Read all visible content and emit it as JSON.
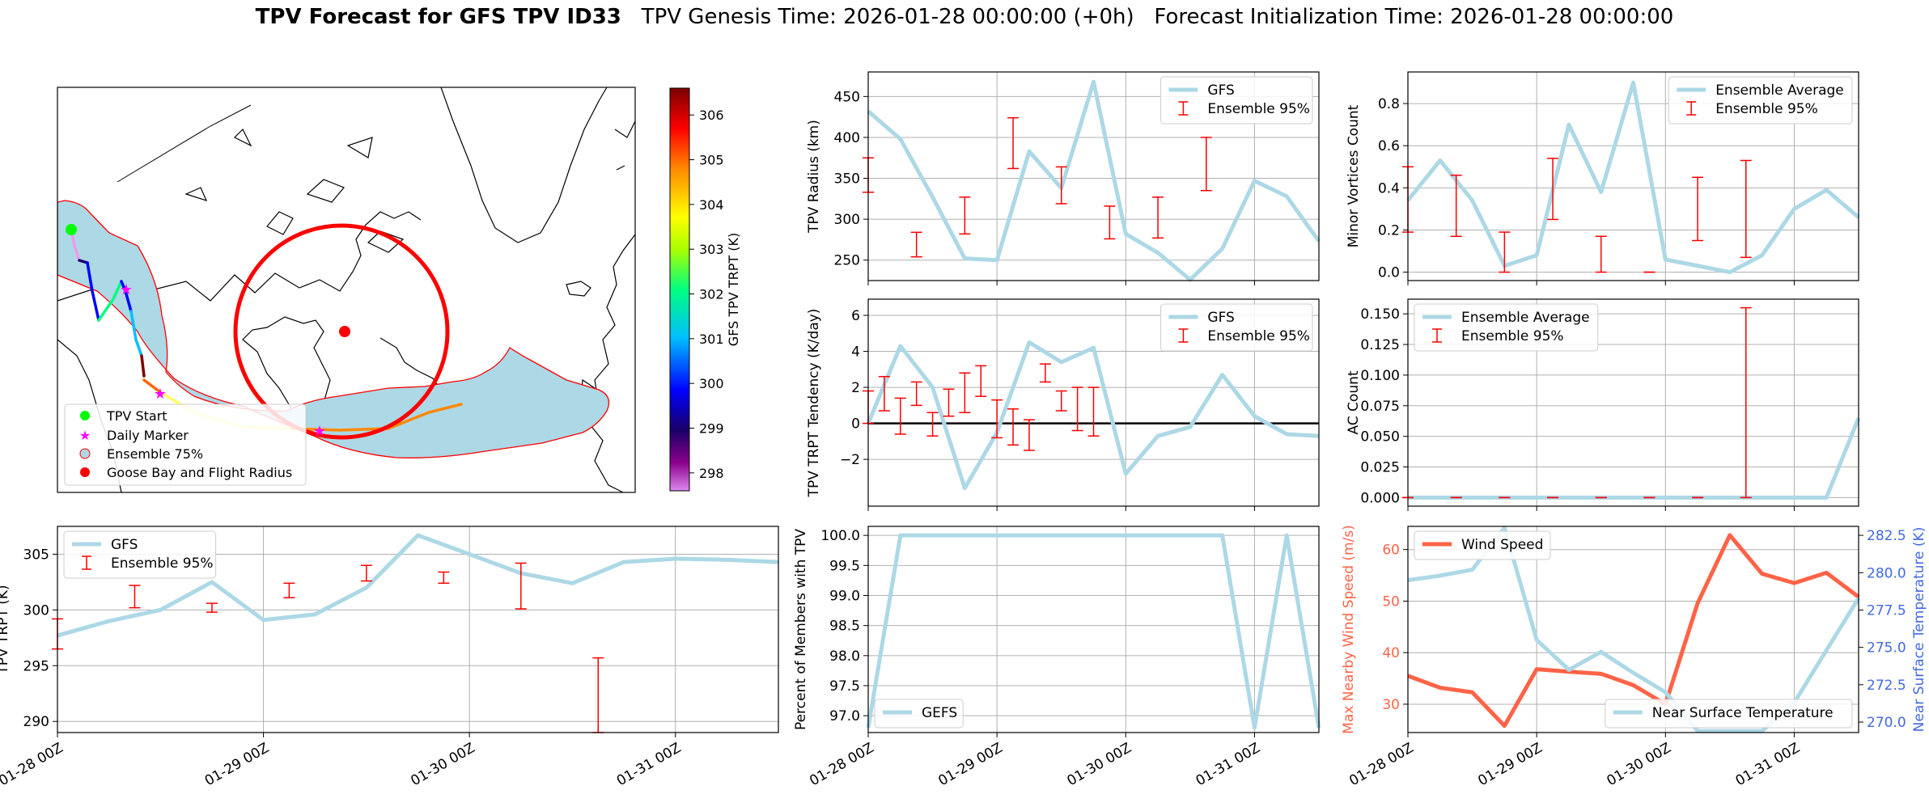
{
  "title": {
    "bold": "TPV Forecast for GFS TPV ID33",
    "rest": "   TPV Genesis Time: 2026-01-28 00:00:00 (+0h)   Forecast Initialization Time: 2026-01-28 00:00:00"
  },
  "colors": {
    "track_fill": "#add8e6",
    "error": "#ff0000",
    "wind": "#ff6347",
    "temp_axis": "#4169e1"
  },
  "map": {
    "colorbar_label": "GFS TPV TRPT (K)",
    "colorbar_ticks": [
      "298",
      "299",
      "300",
      "301",
      "302",
      "303",
      "304",
      "305",
      "306"
    ],
    "legend": [
      "TPV Start",
      "Daily Marker",
      "Ensemble 75%",
      "Goose Bay and Flight Radius"
    ]
  },
  "chart_data": [
    {
      "id": "radius",
      "type": "line",
      "ylabel": "TPV Radius (km)",
      "ylim": [
        225,
        480
      ],
      "yticks": [
        "250",
        "300",
        "350",
        "400",
        "450"
      ],
      "legend": [
        "GFS",
        "Ensemble 95%"
      ],
      "legend_pos": "top-right",
      "series": [
        {
          "name": "GFS",
          "x": [
            0,
            6,
            12,
            18,
            24,
            30,
            36,
            42,
            48,
            54,
            60,
            66,
            72,
            78,
            84
          ],
          "values": [
            432,
            398,
            327,
            252,
            250,
            383,
            338,
            468,
            282,
            259,
            226,
            264,
            347,
            328,
            273
          ]
        }
      ],
      "errorbars": [
        {
          "x": 0,
          "lo": 333,
          "hi": 375
        },
        {
          "x": 9,
          "lo": 254,
          "hi": 284
        },
        {
          "x": 18,
          "lo": 282,
          "hi": 327
        },
        {
          "x": 27,
          "lo": 362,
          "hi": 424
        },
        {
          "x": 36,
          "lo": 319,
          "hi": 364
        },
        {
          "x": 45,
          "lo": 276,
          "hi": 316
        },
        {
          "x": 54,
          "lo": 277,
          "hi": 327
        },
        {
          "x": 63,
          "lo": 335,
          "hi": 400
        }
      ]
    },
    {
      "id": "minor",
      "type": "line",
      "ylabel": "Minor Vortices Count",
      "ylim": [
        -0.04,
        0.95
      ],
      "yticks": [
        "0.0",
        "0.2",
        "0.4",
        "0.6",
        "0.8"
      ],
      "legend": [
        "Ensemble Average",
        "Ensemble 95%"
      ],
      "legend_pos": "top-right",
      "series": [
        {
          "name": "Ensemble Average",
          "x": [
            0,
            6,
            12,
            18,
            24,
            30,
            36,
            42,
            48,
            54,
            60,
            66,
            72,
            78,
            84
          ],
          "values": [
            0.34,
            0.53,
            0.34,
            0.03,
            0.08,
            0.7,
            0.38,
            0.9,
            0.06,
            0.03,
            0.0,
            0.08,
            0.3,
            0.39,
            0.26
          ]
        }
      ],
      "errorbars": [
        {
          "x": 0,
          "lo": 0.19,
          "hi": 0.5
        },
        {
          "x": 9,
          "lo": 0.17,
          "hi": 0.46
        },
        {
          "x": 18,
          "lo": 0.0,
          "hi": 0.19
        },
        {
          "x": 27,
          "lo": 0.25,
          "hi": 0.54
        },
        {
          "x": 36,
          "lo": 0.0,
          "hi": 0.17
        },
        {
          "x": 45,
          "lo": 0.0,
          "hi": 0.0
        },
        {
          "x": 54,
          "lo": 0.15,
          "hi": 0.45
        },
        {
          "x": 63,
          "lo": 0.07,
          "hi": 0.53
        }
      ]
    },
    {
      "id": "tendency",
      "type": "line",
      "ylabel": "TPV TRPT Tendency (K/day)",
      "ylim": [
        -4.6,
        6.9
      ],
      "yticks": [
        "−2",
        "0",
        "2",
        "4",
        "6"
      ],
      "legend": [
        "GFS",
        "Ensemble 95%"
      ],
      "legend_pos": "top-right",
      "series": [
        {
          "name": "GFS",
          "x": [
            0,
            6,
            12,
            18,
            24,
            30,
            36,
            42,
            48,
            54,
            60,
            66,
            72,
            78,
            84
          ],
          "values": [
            0.0,
            4.3,
            2.0,
            -3.6,
            -0.5,
            4.5,
            3.4,
            4.2,
            -2.8,
            -0.7,
            -0.2,
            2.7,
            0.4,
            -0.6,
            -0.7
          ]
        }
      ],
      "errorbars": [
        {
          "x": 0,
          "lo": 0.0,
          "hi": 1.8
        },
        {
          "x": 3,
          "lo": 0.7,
          "hi": 2.6
        },
        {
          "x": 6,
          "lo": -0.6,
          "hi": 1.4
        },
        {
          "x": 9,
          "lo": 1.0,
          "hi": 2.3
        },
        {
          "x": 12,
          "lo": -0.7,
          "hi": 0.6
        },
        {
          "x": 15,
          "lo": 0.4,
          "hi": 1.9
        },
        {
          "x": 18,
          "lo": 0.6,
          "hi": 2.8
        },
        {
          "x": 21,
          "lo": 1.5,
          "hi": 3.2
        },
        {
          "x": 24,
          "lo": -0.8,
          "hi": 1.3
        },
        {
          "x": 27,
          "lo": -1.2,
          "hi": 0.8
        },
        {
          "x": 30,
          "lo": -1.5,
          "hi": 0.2
        },
        {
          "x": 33,
          "lo": 2.3,
          "hi": 3.3
        },
        {
          "x": 36,
          "lo": 0.7,
          "hi": 1.8
        },
        {
          "x": 39,
          "lo": -0.4,
          "hi": 2.0
        },
        {
          "x": 42,
          "lo": -0.7,
          "hi": 2.0
        }
      ]
    },
    {
      "id": "ac",
      "type": "line",
      "ylabel": "AC Count",
      "ylim": [
        -0.007,
        0.162
      ],
      "yticks": [
        "0.000",
        "0.025",
        "0.050",
        "0.075",
        "0.100",
        "0.125",
        "0.150"
      ],
      "legend": [
        "Ensemble Average",
        "Ensemble 95%"
      ],
      "legend_pos": "top-left",
      "series": [
        {
          "name": "Ensemble Average",
          "x": [
            0,
            6,
            12,
            18,
            24,
            30,
            36,
            42,
            48,
            54,
            60,
            66,
            72,
            78,
            84
          ],
          "values": [
            0,
            0,
            0,
            0,
            0,
            0,
            0,
            0,
            0,
            0,
            0,
            0,
            0,
            0,
            0.065
          ]
        }
      ],
      "errorbars": [
        {
          "x": 0,
          "lo": 0,
          "hi": 0
        },
        {
          "x": 9,
          "lo": 0,
          "hi": 0
        },
        {
          "x": 18,
          "lo": 0,
          "hi": 0
        },
        {
          "x": 27,
          "lo": 0,
          "hi": 0
        },
        {
          "x": 36,
          "lo": 0,
          "hi": 0
        },
        {
          "x": 45,
          "lo": 0,
          "hi": 0
        },
        {
          "x": 54,
          "lo": 0,
          "hi": 0
        },
        {
          "x": 63,
          "lo": 0,
          "hi": 0.155
        }
      ]
    },
    {
      "id": "trpt",
      "type": "line",
      "ylabel": "TPV TRPT (K)",
      "ylim": [
        289,
        307.5
      ],
      "yticks": [
        "290",
        "295",
        "300",
        "305"
      ],
      "legend": [
        "GFS",
        "Ensemble 95%"
      ],
      "legend_pos": "top-left",
      "xticks": [
        "01-28 00Z",
        "01-29 00Z",
        "01-30 00Z",
        "01-31 00Z"
      ],
      "series": [
        {
          "name": "GFS",
          "x": [
            0,
            6,
            12,
            18,
            24,
            30,
            36,
            42,
            48,
            54,
            60,
            66,
            72,
            78,
            84
          ],
          "values": [
            297.7,
            299.0,
            300.0,
            302.5,
            299.1,
            299.6,
            302.0,
            306.7,
            305.0,
            303.3,
            302.4,
            304.3,
            304.6,
            304.5,
            304.3
          ]
        }
      ],
      "errorbars": [
        {
          "x": 0,
          "lo": 296.5,
          "hi": 299.2
        },
        {
          "x": 9,
          "lo": 300.2,
          "hi": 302.2
        },
        {
          "x": 18,
          "lo": 299.8,
          "hi": 300.6
        },
        {
          "x": 27,
          "lo": 301.1,
          "hi": 302.4
        },
        {
          "x": 36,
          "lo": 302.6,
          "hi": 304.0
        },
        {
          "x": 45,
          "lo": 302.4,
          "hi": 303.4
        },
        {
          "x": 54,
          "lo": 300.1,
          "hi": 304.2
        },
        {
          "x": 63,
          "lo": 289.0,
          "hi": 295.7
        }
      ]
    },
    {
      "id": "percent",
      "type": "line",
      "ylabel": "Percent of Members with TPV",
      "ylim": [
        96.72,
        100.15
      ],
      "yticks": [
        "97.0",
        "97.5",
        "98.0",
        "98.5",
        "99.0",
        "99.5",
        "100.0"
      ],
      "legend": [
        "GEFS"
      ],
      "legend_pos": "bottom-left",
      "xticks": [
        "01-28 00Z",
        "01-29 00Z",
        "01-30 00Z",
        "01-31 00Z"
      ],
      "series": [
        {
          "name": "GEFS",
          "x": [
            0,
            6,
            12,
            18,
            24,
            30,
            36,
            42,
            48,
            54,
            60,
            66,
            72,
            78,
            84
          ],
          "values": [
            96.8,
            100.0,
            100.0,
            100.0,
            100.0,
            100.0,
            100.0,
            100.0,
            100.0,
            100.0,
            100.0,
            100.0,
            96.8,
            100.0,
            96.8
          ]
        }
      ],
      "errorbars": []
    },
    {
      "id": "wind",
      "type": "line",
      "ylabel": "Max Nearby Wind Speed (m/s)",
      "ylim": [
        24.5,
        64.5
      ],
      "yticks": [
        "30",
        "40",
        "50",
        "60"
      ],
      "ylabel2": "Near Surface Temperature (K)",
      "ylim2": [
        269.3,
        283.1
      ],
      "yticks2": [
        "270.0",
        "272.5",
        "275.0",
        "277.5",
        "280.0",
        "282.5"
      ],
      "legend": [
        "Wind Speed"
      ],
      "legend2": [
        "Near Surface Temperature"
      ],
      "xticks": [
        "01-28 00Z",
        "01-29 00Z",
        "01-30 00Z",
        "01-31 00Z"
      ],
      "series": [
        {
          "name": "Wind Speed",
          "axis": "left",
          "x": [
            0,
            6,
            12,
            18,
            24,
            30,
            36,
            42,
            48,
            54,
            60,
            66,
            72,
            78,
            84
          ],
          "values": [
            35.5,
            33.2,
            32.3,
            25.8,
            36.8,
            36.3,
            35.9,
            33.7,
            30.0,
            49.6,
            62.8,
            55.3,
            53.5,
            55.5,
            50.8
          ]
        },
        {
          "name": "Near Surface Temperature",
          "axis": "right",
          "x": [
            0,
            6,
            12,
            18,
            24,
            30,
            36,
            42,
            48,
            54,
            60,
            66,
            72,
            78,
            84
          ],
          "values": [
            279.5,
            279.8,
            280.2,
            283.0,
            275.5,
            273.5,
            274.7,
            273.3,
            272.0,
            269.4,
            269.4,
            269.4,
            271.3,
            274.8,
            278.3
          ]
        }
      ]
    }
  ]
}
